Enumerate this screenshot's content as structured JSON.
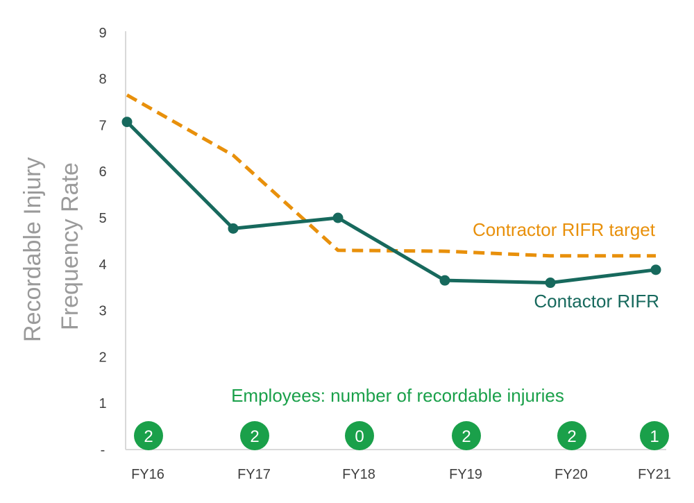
{
  "chart_data": {
    "type": "line",
    "categories": [
      "FY16",
      "FY17",
      "FY18",
      "FY19",
      "FY20",
      "FY21"
    ],
    "ylabel_lines": [
      "Recordable Injury",
      "Frequency Rate"
    ],
    "y_ticks": [
      "-",
      "1",
      "2",
      "3",
      "4",
      "5",
      "6",
      "7",
      "8",
      "9"
    ],
    "ylim": [
      0,
      9
    ],
    "grid": false,
    "series": [
      {
        "name": "Contractor RIFR target",
        "style": "dashed",
        "color": "#e8900b",
        "values": [
          7.65,
          6.35,
          4.3,
          4.28,
          4.18,
          4.18
        ]
      },
      {
        "name": "Contactor RIFR",
        "style": "solid-markers",
        "color": "#17695d",
        "values": [
          7.07,
          4.77,
          5.0,
          3.65,
          3.6,
          3.88
        ]
      }
    ],
    "employees_label": "Employees: number of recordable injuries",
    "employees_badges": [
      "2",
      "2",
      "0",
      "2",
      "2",
      "1"
    ],
    "badge_color": "#1aa04a"
  }
}
